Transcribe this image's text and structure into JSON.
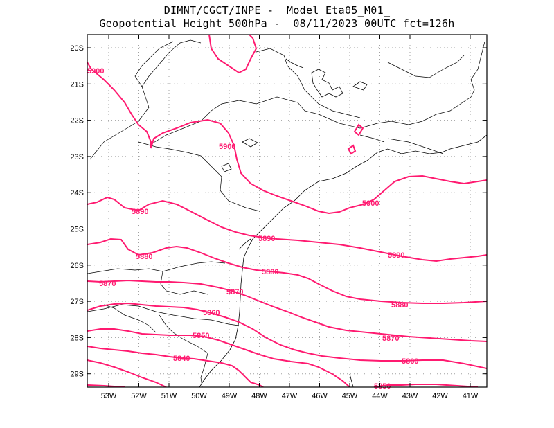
{
  "title": {
    "line1": "DIMNT/CGCT/INPE -  Model Eta05_M01_",
    "line2": "Geopotential Height 500hPa -  08/11/2023 00UTC fct=126h"
  },
  "axes": {
    "lon_labels": [
      "53W",
      "52W",
      "51W",
      "50W",
      "49W",
      "48W",
      "47W",
      "46W",
      "45W",
      "44W",
      "43W",
      "42W",
      "41W"
    ],
    "lat_labels": [
      "20S",
      "21S",
      "22S",
      "23S",
      "24S",
      "25S",
      "26S",
      "27S",
      "28S",
      "29S"
    ]
  },
  "contour_labels": [
    {
      "id": "c5900a",
      "text": "5900"
    },
    {
      "id": "c5900b",
      "text": "5900"
    },
    {
      "id": "c5900c",
      "text": "5900"
    },
    {
      "id": "c5890a",
      "text": "5890"
    },
    {
      "id": "c5890b",
      "text": "5890"
    },
    {
      "id": "c5890c",
      "text": "5890"
    },
    {
      "id": "c5880a",
      "text": "5880"
    },
    {
      "id": "c5880b",
      "text": "5880"
    },
    {
      "id": "c5880c",
      "text": "5880"
    },
    {
      "id": "c5870a",
      "text": "5870"
    },
    {
      "id": "c5870b",
      "text": "5870"
    },
    {
      "id": "c5870c",
      "text": "5870"
    },
    {
      "id": "c5860a",
      "text": "5860"
    },
    {
      "id": "c5860b",
      "text": "5860"
    },
    {
      "id": "c5850a",
      "text": "5850"
    },
    {
      "id": "c5850b",
      "text": "5850"
    },
    {
      "id": "c5840a",
      "text": "5840"
    }
  ],
  "colors": {
    "contour": "#ff1a70",
    "grid": "#999999",
    "border": "#000000",
    "coast": "#000000"
  }
}
